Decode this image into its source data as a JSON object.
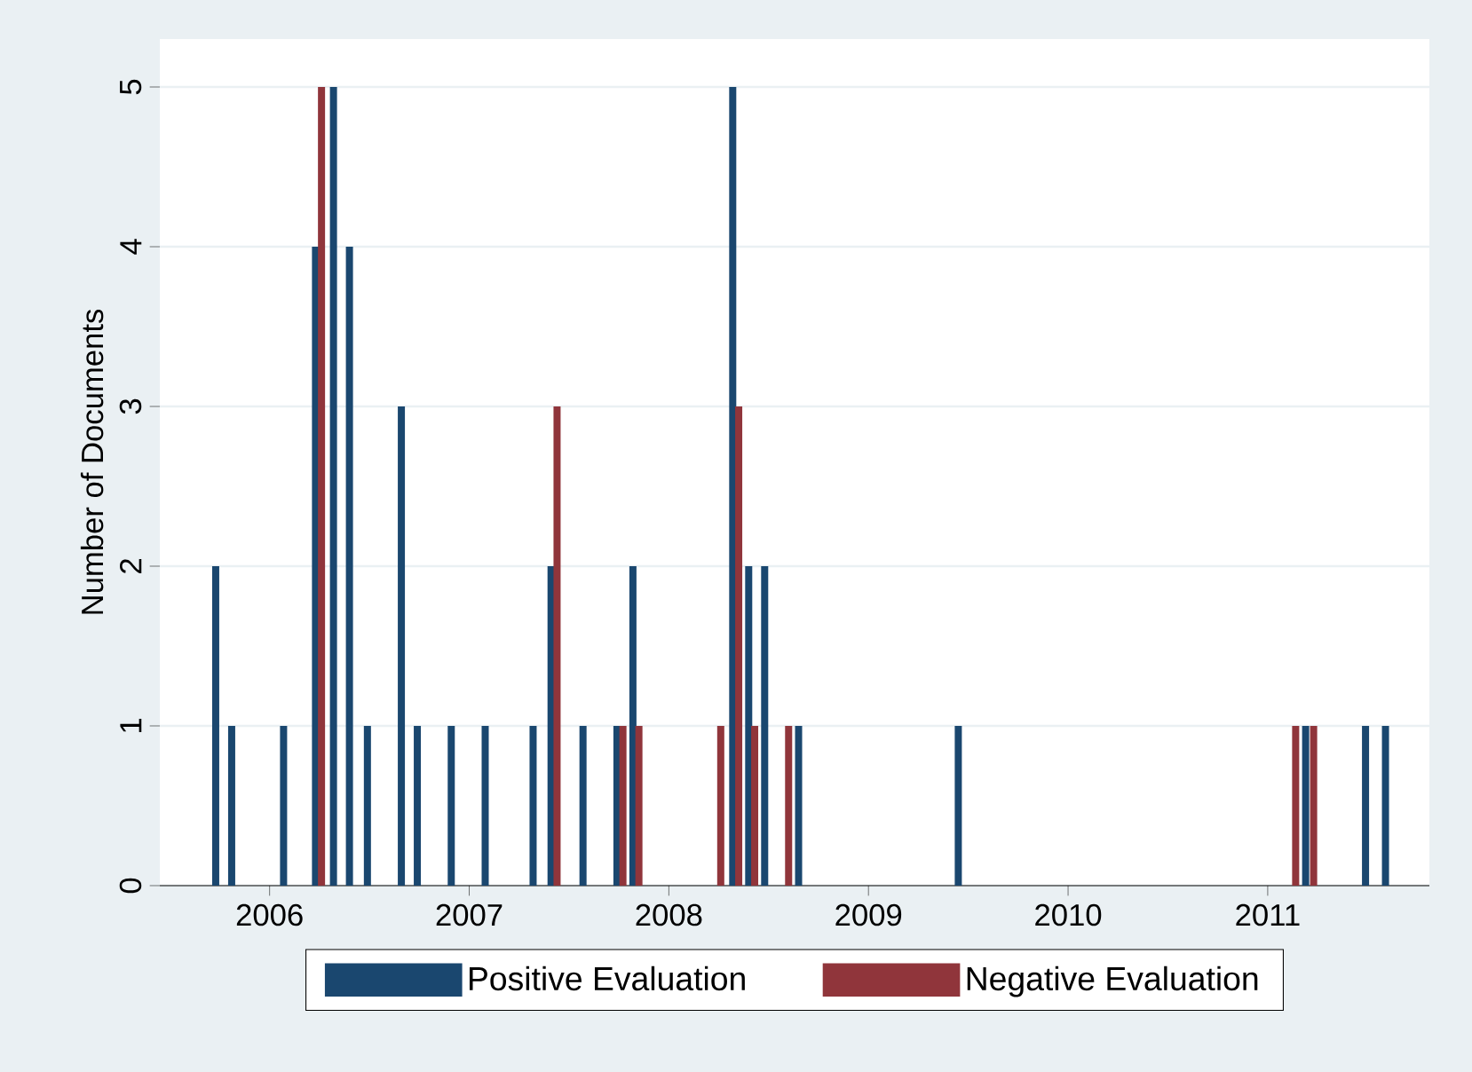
{
  "chart_data": {
    "type": "bar",
    "ylabel": "Number of Documents",
    "series": [
      {
        "name": "Positive Evaluation",
        "color": "#1a476f",
        "x": [
          2005.73,
          2005.81,
          2006.07,
          2006.23,
          2006.32,
          2006.4,
          2006.49,
          2006.66,
          2006.74,
          2006.91,
          2007.08,
          2007.32,
          2007.41,
          2007.57,
          2007.74,
          2007.82,
          2008.32,
          2008.4,
          2008.48,
          2008.65,
          2009.45,
          2011.19,
          2011.49,
          2011.59
        ],
        "values": [
          2,
          1,
          1,
          4,
          5,
          4,
          1,
          3,
          1,
          1,
          1,
          1,
          2,
          1,
          1,
          2,
          5,
          2,
          2,
          1,
          1,
          1,
          1,
          1
        ]
      },
      {
        "name": "Negative Evaluation",
        "color": "#90353b",
        "x": [
          2006.26,
          2007.44,
          2007.77,
          2007.85,
          2008.26,
          2008.35,
          2008.43,
          2008.6,
          2011.14,
          2011.23
        ],
        "values": [
          5,
          3,
          1,
          1,
          1,
          3,
          1,
          1,
          1,
          1
        ]
      }
    ],
    "xlim": [
      2005.45,
      2011.81
    ],
    "xticks": [
      2006,
      2007,
      2008,
      2009,
      2010,
      2011
    ],
    "ylim": [
      0,
      5.3
    ],
    "yticks": [
      0,
      1,
      2,
      3,
      4,
      5
    ],
    "grid": "y",
    "legend": "bottom"
  }
}
